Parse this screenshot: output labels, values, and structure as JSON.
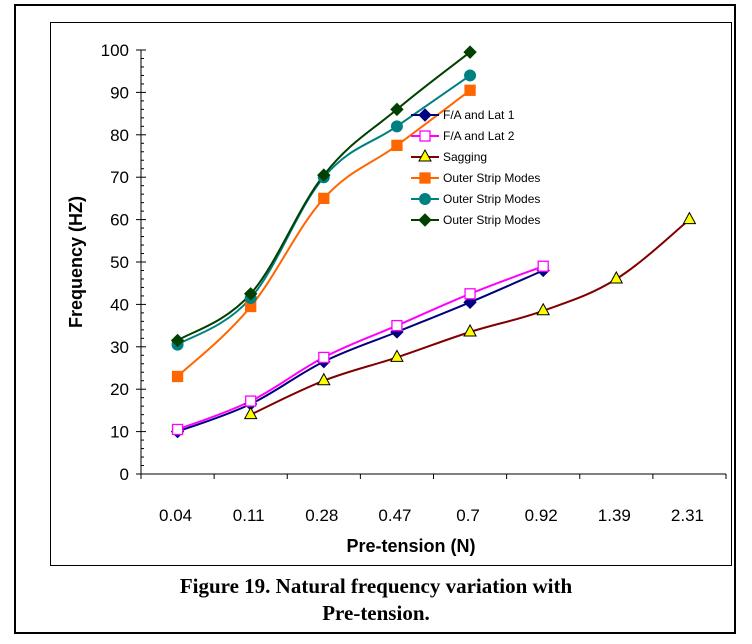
{
  "caption": {
    "line1": "Figure 19.  Natural frequency variation with",
    "line2": "Pre-tension."
  },
  "chart_data": {
    "type": "line",
    "title": "",
    "xlabel": "Pre-tension (N)",
    "ylabel": "Frequency (HZ)",
    "categories": [
      "0.04",
      "0.11",
      "0.28",
      "0.47",
      "0.7",
      "0.92",
      "1.39",
      "2.31"
    ],
    "ylim": [
      0,
      100
    ],
    "yticks": [
      0,
      10,
      20,
      30,
      40,
      50,
      60,
      70,
      80,
      90,
      100
    ],
    "grid": false,
    "legend_position": "right",
    "series": [
      {
        "name": "F/A and Lat 1",
        "color": "#000080",
        "marker": "diamond",
        "fill": "#000080",
        "values": [
          10,
          16.5,
          26.5,
          33.5,
          40.5,
          48,
          null,
          null
        ]
      },
      {
        "name": "F/A and Lat 2",
        "color": "#ff00ff",
        "marker": "square",
        "fill": "#ffffff",
        "values": [
          10.5,
          17.2,
          27.5,
          35,
          42.5,
          49,
          null,
          null
        ]
      },
      {
        "name": "Sagging",
        "color": "#800000",
        "marker": "triangle",
        "fill": "#ffff00",
        "values": [
          null,
          14,
          22,
          27.5,
          33.5,
          38.5,
          46,
          60
        ]
      },
      {
        "name": "Outer Strip Modes",
        "color": "#ff6600",
        "marker": "square",
        "fill": "#ff6600",
        "values": [
          23,
          39.5,
          65,
          77.5,
          90.5,
          null,
          null,
          null
        ]
      },
      {
        "name": "Outer Strip Modes",
        "color": "#008080",
        "marker": "circle",
        "fill": "#008080",
        "values": [
          30.5,
          41.5,
          70,
          82,
          94,
          null,
          null,
          null
        ]
      },
      {
        "name": "Outer Strip Modes",
        "color": "#004000",
        "marker": "diamond",
        "fill": "#004000",
        "values": [
          31.5,
          42.5,
          70.5,
          86,
          99.5,
          null,
          null,
          null
        ]
      }
    ]
  }
}
